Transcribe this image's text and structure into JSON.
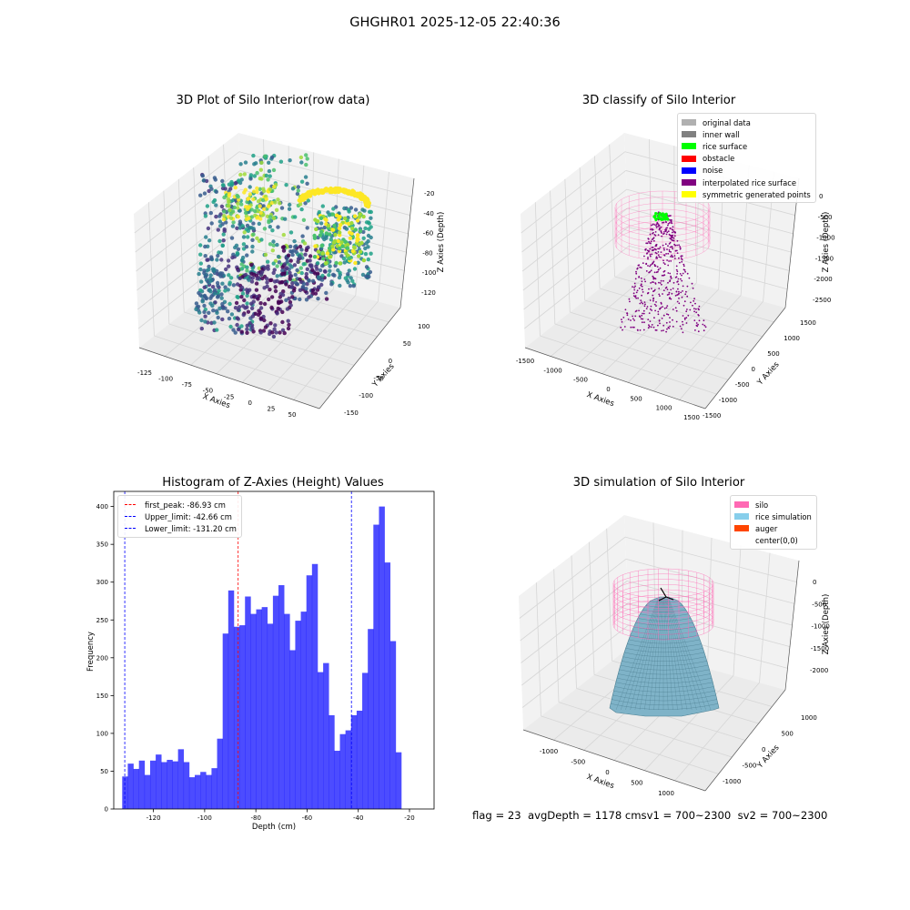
{
  "suptitle": "GHGHR01 2025-12-05 22:40:36",
  "panels": {
    "raw": {
      "title": "3D Plot of Silo Interior(row data)",
      "xlabel": "X Axies",
      "ylabel": "Y Axies",
      "zlabel": "Z Axies (Depth)",
      "xticks": [
        "-125",
        "-100",
        "-75",
        "-50",
        "-25",
        "0",
        "25",
        "50"
      ],
      "yticks": [
        "100",
        "50",
        "0",
        "-50",
        "-100",
        "-150"
      ],
      "zticks": [
        "-20",
        "-40",
        "-60",
        "-80",
        "-100",
        "-120"
      ]
    },
    "classify": {
      "title": "3D classify of Silo Interior",
      "xlabel": "X Axies",
      "ylabel": "Y Axies",
      "zlabel": "Z Axies (Depth)",
      "xticks": [
        "-1500",
        "-1000",
        "-500",
        "0",
        "500",
        "1000",
        "1500"
      ],
      "yticks": [
        "1500",
        "1000",
        "500",
        "0",
        "-500",
        "-1000",
        "-1500"
      ],
      "zticks": [
        "0",
        "-500",
        "-1000",
        "-1500",
        "-2000",
        "-2500"
      ],
      "legend": [
        {
          "label": "original data",
          "color": "#b0b0b0"
        },
        {
          "label": "inner wall",
          "color": "#808080"
        },
        {
          "label": "rice surface",
          "color": "#00ff00"
        },
        {
          "label": "obstacle",
          "color": "#ff0000"
        },
        {
          "label": "noise",
          "color": "#0000ff"
        },
        {
          "label": "interpolated rice surface",
          "color": "#800080"
        },
        {
          "label": "symmetric generated points",
          "color": "#ffff00"
        }
      ]
    },
    "histogram": {
      "title": "Histogram of Z-Axies (Height) Values",
      "xlabel": "Depth (cm)",
      "ylabel": "Frequency",
      "legend": [
        {
          "label": "first_peak: -86.93 cm",
          "color": "#ff0000"
        },
        {
          "label": "Upper_limit: -42.66 cm",
          "color": "#0000ff"
        },
        {
          "label": "Lower_limit: -131.20 cm",
          "color": "#0000ff"
        }
      ]
    },
    "simulation": {
      "title": "3D simulation of Silo Interior",
      "xlabel": "X Axies",
      "ylabel": "Y Axies",
      "zlabel": "Z Axies (Depth)",
      "xticks": [
        "-1000",
        "-500",
        "0",
        "500",
        "1000"
      ],
      "yticks": [
        "1000",
        "500",
        "0",
        "-500",
        "-1000"
      ],
      "zticks": [
        "0",
        "-500",
        "-1000",
        "-1500",
        "-2000"
      ],
      "legend": [
        {
          "label": "silo",
          "color": "#ff69b4"
        },
        {
          "label": "rice simulation",
          "color": "#87ceeb"
        },
        {
          "label": "auger",
          "color": "#ff4500"
        },
        {
          "label": "center(0,0)",
          "color": "#ffffff"
        }
      ]
    }
  },
  "status": {
    "text": "flag = 23  avgDepth = 1178 cmsv1 = 700~2300  sv2 = 700~2300"
  },
  "chart_data": [
    {
      "type": "scatter",
      "title": "3D Plot of Silo Interior(row data)",
      "xlabel": "X Axies",
      "ylabel": "Y Axies",
      "zlabel": "Z Axies (Depth)",
      "xlim": [
        -135,
        60
      ],
      "ylim": [
        -160,
        110
      ],
      "zlim": [
        -135,
        -10
      ],
      "colormap": "viridis"
    },
    {
      "type": "scatter",
      "title": "3D classify of Silo Interior",
      "xlabel": "X Axies",
      "ylabel": "Y Axies",
      "zlabel": "Z Axies (Depth)",
      "xlim": [
        -1500,
        1500
      ],
      "ylim": [
        -1500,
        1500
      ],
      "zlim": [
        -2800,
        200
      ]
    },
    {
      "type": "bar",
      "title": "Histogram of Z-Axies (Height) Values",
      "xlabel": "Depth (cm)",
      "ylabel": "Frequency",
      "xlim": [
        -135.5,
        -10.4
      ],
      "ylim": [
        0,
        420
      ],
      "xticks": [
        -120,
        -100,
        -80,
        -60,
        -40,
        -20
      ],
      "yticks": [
        0,
        50,
        100,
        150,
        200,
        250,
        300,
        350,
        400
      ],
      "bin_start": -132.2,
      "bin_width": 2.18,
      "values": [
        43,
        60,
        53,
        64,
        45,
        64,
        72,
        62,
        65,
        63,
        79,
        62,
        42,
        45,
        49,
        45,
        54,
        93,
        232,
        289,
        241,
        243,
        281,
        258,
        264,
        267,
        245,
        282,
        296,
        258,
        210,
        249,
        261,
        309,
        324,
        181,
        193,
        124,
        77,
        99,
        104,
        124,
        130,
        180,
        238,
        376,
        400,
        326,
        222,
        75
      ],
      "color": "#0000ff",
      "vlines": [
        {
          "x": -86.93,
          "color": "#ff0000"
        },
        {
          "x": -42.66,
          "color": "#0000ff"
        },
        {
          "x": -131.2,
          "color": "#0000ff"
        }
      ],
      "legend": "top-left"
    },
    {
      "type": "area",
      "title": "3D simulation of Silo Interior",
      "xlabel": "X Axies",
      "ylabel": "Y Axies",
      "zlabel": "Z Axies (Depth)",
      "xlim": [
        -1300,
        1300
      ],
      "ylim": [
        -1300,
        1300
      ],
      "zlim": [
        -2300,
        200
      ]
    }
  ]
}
